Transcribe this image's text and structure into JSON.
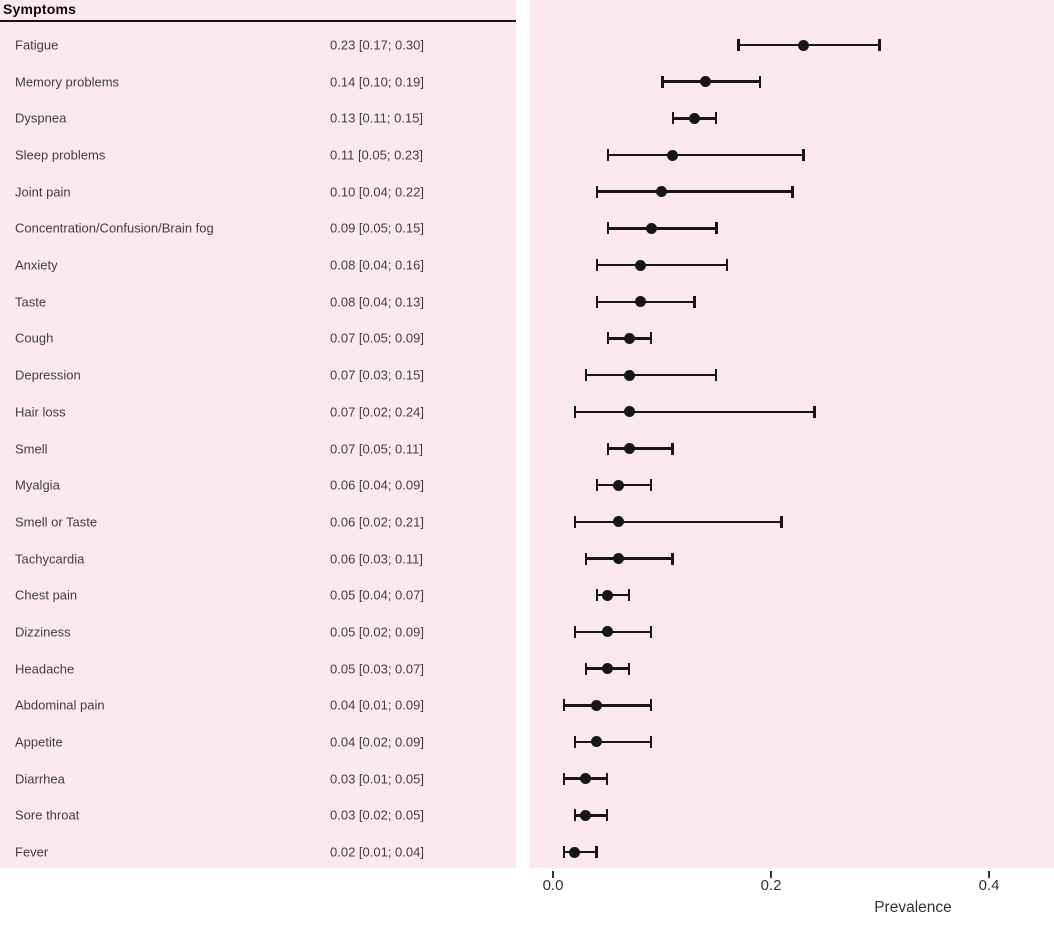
{
  "colors": {
    "panel_bg": "#fce9ee",
    "marker": "#161616",
    "row_text": "#3f3f3f",
    "header_text": "#0a0a0a",
    "axis_text": "#333333"
  },
  "chart_data": {
    "type": "scatter",
    "variant": "forest-plot",
    "column_header": "Symptoms",
    "xlabel": "Prevalence",
    "xlim": [
      -0.02,
      0.46
    ],
    "x_ticks": [
      {
        "value": 0.0,
        "label": "0.0"
      },
      {
        "value": 0.2,
        "label": "0.2"
      },
      {
        "value": 0.4,
        "label": "0.4"
      }
    ],
    "grid": false,
    "legend": false,
    "rows": [
      {
        "label": "Fatigue",
        "estimate": 0.23,
        "ci_low": 0.17,
        "ci_high": 0.3,
        "text": "0.23 [0.17; 0.30]"
      },
      {
        "label": "Memory problems",
        "estimate": 0.14,
        "ci_low": 0.1,
        "ci_high": 0.19,
        "text": "0.14 [0.10; 0.19]"
      },
      {
        "label": "Dyspnea",
        "estimate": 0.13,
        "ci_low": 0.11,
        "ci_high": 0.15,
        "text": "0.13 [0.11; 0.15]"
      },
      {
        "label": "Sleep problems",
        "estimate": 0.11,
        "ci_low": 0.05,
        "ci_high": 0.23,
        "text": "0.11 [0.05; 0.23]"
      },
      {
        "label": "Joint pain",
        "estimate": 0.1,
        "ci_low": 0.04,
        "ci_high": 0.22,
        "text": "0.10 [0.04; 0.22]"
      },
      {
        "label": "Concentration/Confusion/Brain fog",
        "estimate": 0.09,
        "ci_low": 0.05,
        "ci_high": 0.15,
        "text": "0.09 [0.05; 0.15]"
      },
      {
        "label": "Anxiety",
        "estimate": 0.08,
        "ci_low": 0.04,
        "ci_high": 0.16,
        "text": "0.08 [0.04; 0.16]"
      },
      {
        "label": "Taste",
        "estimate": 0.08,
        "ci_low": 0.04,
        "ci_high": 0.13,
        "text": "0.08 [0.04; 0.13]"
      },
      {
        "label": "Cough",
        "estimate": 0.07,
        "ci_low": 0.05,
        "ci_high": 0.09,
        "text": "0.07 [0.05; 0.09]"
      },
      {
        "label": "Depression",
        "estimate": 0.07,
        "ci_low": 0.03,
        "ci_high": 0.15,
        "text": "0.07 [0.03; 0.15]"
      },
      {
        "label": "Hair loss",
        "estimate": 0.07,
        "ci_low": 0.02,
        "ci_high": 0.24,
        "text": "0.07 [0.02; 0.24]"
      },
      {
        "label": "Smell",
        "estimate": 0.07,
        "ci_low": 0.05,
        "ci_high": 0.11,
        "text": "0.07 [0.05; 0.11]"
      },
      {
        "label": "Myalgia",
        "estimate": 0.06,
        "ci_low": 0.04,
        "ci_high": 0.09,
        "text": "0.06 [0.04; 0.09]"
      },
      {
        "label": "Smell or Taste",
        "estimate": 0.06,
        "ci_low": 0.02,
        "ci_high": 0.21,
        "text": "0.06 [0.02; 0.21]"
      },
      {
        "label": "Tachycardia",
        "estimate": 0.06,
        "ci_low": 0.03,
        "ci_high": 0.11,
        "text": "0.06 [0.03; 0.11]"
      },
      {
        "label": "Chest pain",
        "estimate": 0.05,
        "ci_low": 0.04,
        "ci_high": 0.07,
        "text": "0.05 [0.04; 0.07]"
      },
      {
        "label": "Dizziness",
        "estimate": 0.05,
        "ci_low": 0.02,
        "ci_high": 0.09,
        "text": "0.05 [0.02; 0.09]"
      },
      {
        "label": "Headache",
        "estimate": 0.05,
        "ci_low": 0.03,
        "ci_high": 0.07,
        "text": "0.05 [0.03; 0.07]"
      },
      {
        "label": "Abdominal pain",
        "estimate": 0.04,
        "ci_low": 0.01,
        "ci_high": 0.09,
        "text": "0.04 [0.01; 0.09]"
      },
      {
        "label": "Appetite",
        "estimate": 0.04,
        "ci_low": 0.02,
        "ci_high": 0.09,
        "text": "0.04 [0.02; 0.09]"
      },
      {
        "label": "Diarrhea",
        "estimate": 0.03,
        "ci_low": 0.01,
        "ci_high": 0.05,
        "text": "0.03 [0.01; 0.05]"
      },
      {
        "label": "Sore throat",
        "estimate": 0.03,
        "ci_low": 0.02,
        "ci_high": 0.05,
        "text": "0.03 [0.02; 0.05]"
      },
      {
        "label": "Fever",
        "estimate": 0.02,
        "ci_low": 0.01,
        "ci_high": 0.04,
        "text": "0.02 [0.01; 0.04]"
      }
    ]
  }
}
